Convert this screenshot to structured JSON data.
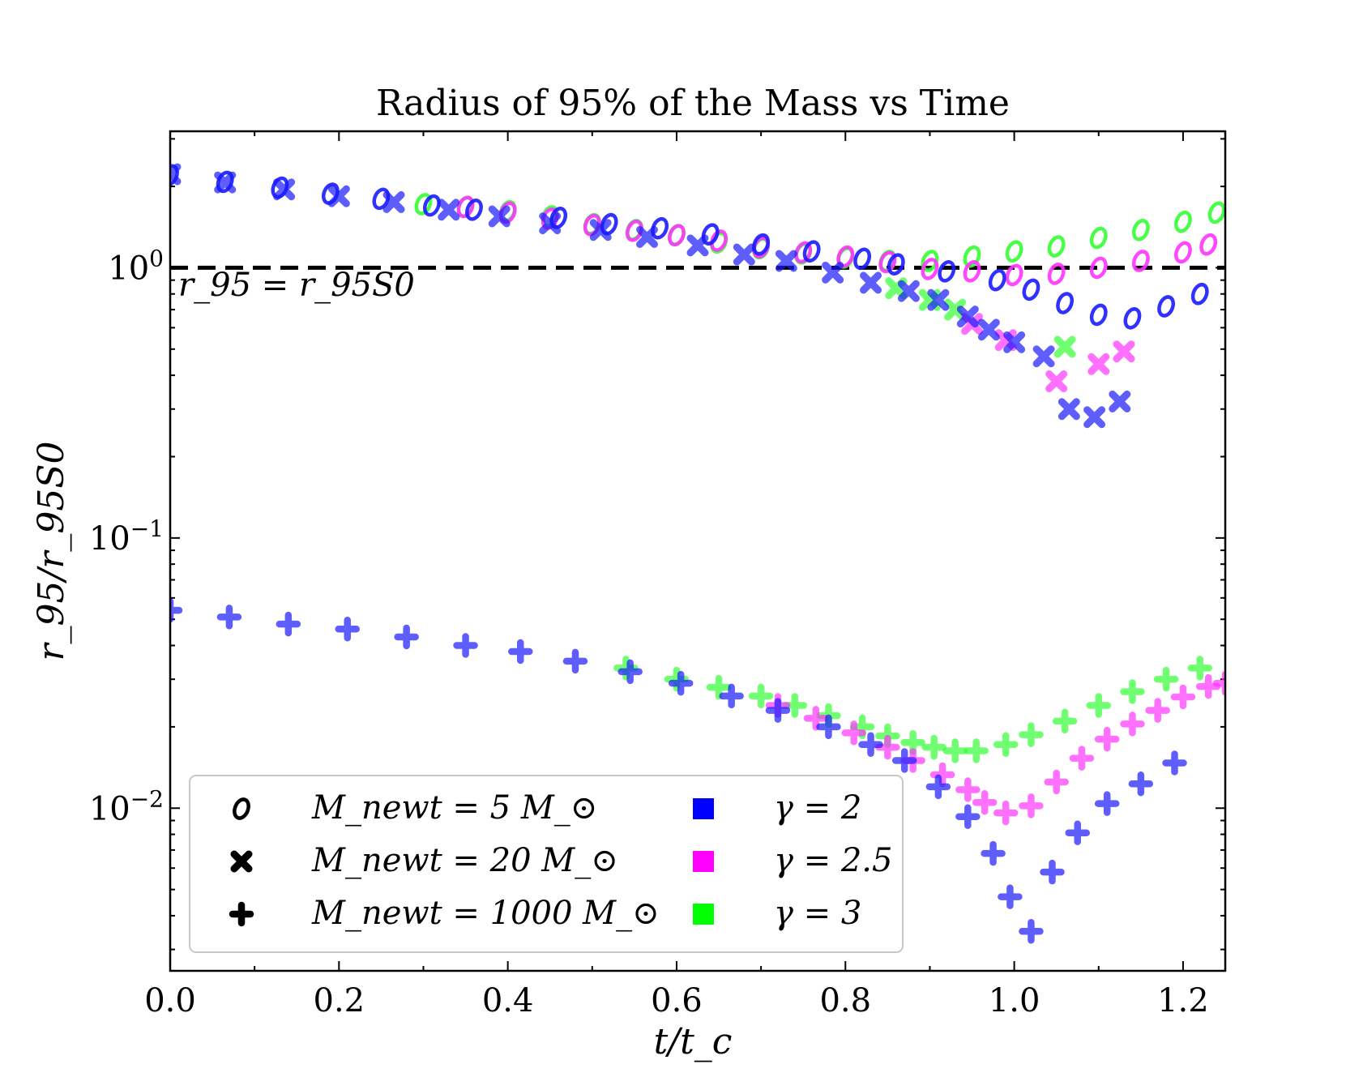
{
  "chart_data": {
    "type": "scatter",
    "title": "Radius of 95% of the Mass vs Time",
    "xlabel": "t/t_c",
    "ylabel": "r_95/r_95S0",
    "xscale": "linear",
    "yscale": "log",
    "xlim": [
      0.0,
      1.25
    ],
    "ylim": [
      0.0025,
      3.2
    ],
    "x_ticks": [
      "0.0",
      "0.2",
      "0.4",
      "0.6",
      "0.8",
      "1.0",
      "1.2"
    ],
    "y_ticks": [
      {
        "value": 1,
        "base": "10",
        "exp": "0"
      },
      {
        "value": 0.1,
        "base": "10",
        "exp": "−1"
      },
      {
        "value": 0.01,
        "base": "10",
        "exp": "−2"
      }
    ],
    "reference_line": {
      "y": 1.0,
      "style": "dashed",
      "label": "r_95 = r_95S0"
    },
    "colors": {
      "gamma2": "#1a1aff",
      "gamma2.5": "#ff33ff",
      "gamma3": "#33ff33"
    },
    "legend": {
      "location": "lower-left",
      "markers": [
        {
          "marker": "o",
          "label": "M_newt = 5 M_⊙"
        },
        {
          "marker": "X",
          "label": "M_newt = 20 M_⊙"
        },
        {
          "marker": "P",
          "label": "M_newt = 1000 M_⊙"
        }
      ],
      "colors": [
        {
          "color": "#0000ff",
          "label": "γ = 2"
        },
        {
          "color": "#ff00ff",
          "label": "γ = 2.5"
        },
        {
          "color": "#00ff00",
          "label": "γ = 3"
        }
      ]
    },
    "series": [
      {
        "name": "M=5, γ=3",
        "marker": "o",
        "color": "#33ff33",
        "x": [
          0.3,
          0.35,
          0.4,
          0.45,
          0.5,
          0.55,
          0.6,
          0.65,
          0.7,
          0.75,
          0.8,
          0.85,
          0.9,
          0.95,
          1.0,
          1.05,
          1.1,
          1.15,
          1.2,
          1.24
        ],
        "y": [
          1.72,
          1.68,
          1.62,
          1.55,
          1.45,
          1.38,
          1.32,
          1.24,
          1.18,
          1.13,
          1.09,
          1.06,
          1.06,
          1.1,
          1.15,
          1.2,
          1.29,
          1.38,
          1.48,
          1.6
        ]
      },
      {
        "name": "M=5, γ=2.5",
        "marker": "o",
        "color": "#ff33ff",
        "x": [
          0.35,
          0.4,
          0.45,
          0.5,
          0.55,
          0.6,
          0.65,
          0.7,
          0.75,
          0.8,
          0.85,
          0.9,
          0.95,
          1.0,
          1.05,
          1.1,
          1.15,
          1.2,
          1.23
        ],
        "y": [
          1.68,
          1.6,
          1.52,
          1.44,
          1.37,
          1.32,
          1.26,
          1.19,
          1.14,
          1.1,
          1.05,
          0.99,
          0.97,
          0.94,
          0.95,
          1.0,
          1.06,
          1.14,
          1.22
        ]
      },
      {
        "name": "M=5, γ=2",
        "marker": "o",
        "color": "#1a1aff",
        "x": [
          0.0,
          0.065,
          0.13,
          0.19,
          0.25,
          0.31,
          0.36,
          0.46,
          0.52,
          0.58,
          0.64,
          0.7,
          0.76,
          0.82,
          0.86,
          0.92,
          0.98,
          1.02,
          1.06,
          1.1,
          1.14,
          1.18,
          1.22
        ],
        "y": [
          2.2,
          2.08,
          1.98,
          1.88,
          1.8,
          1.7,
          1.64,
          1.53,
          1.45,
          1.4,
          1.33,
          1.22,
          1.15,
          1.08,
          1.03,
          0.97,
          0.9,
          0.83,
          0.74,
          0.67,
          0.65,
          0.72,
          0.8
        ]
      },
      {
        "name": "M=20, γ=3",
        "marker": "X",
        "color": "#33ff33",
        "x": [
          0.86,
          0.9,
          0.93,
          1.06
        ],
        "y": [
          0.84,
          0.76,
          0.7,
          0.51
        ]
      },
      {
        "name": "M=20, γ=2.5",
        "marker": "X",
        "color": "#ff33ff",
        "x": [
          0.95,
          0.99,
          1.05,
          1.1,
          1.13
        ],
        "y": [
          0.62,
          0.54,
          0.38,
          0.44,
          0.49
        ]
      },
      {
        "name": "M=20, γ=2",
        "marker": "X",
        "color": "#1a1aff",
        "x": [
          0.0,
          0.065,
          0.135,
          0.2,
          0.265,
          0.33,
          0.39,
          0.45,
          0.51,
          0.565,
          0.625,
          0.68,
          0.73,
          0.785,
          0.83,
          0.875,
          0.91,
          0.945,
          0.97,
          1.0,
          1.035,
          1.065,
          1.095,
          1.125
        ],
        "y": [
          2.22,
          2.07,
          1.95,
          1.84,
          1.75,
          1.64,
          1.55,
          1.46,
          1.38,
          1.3,
          1.21,
          1.12,
          1.06,
          0.96,
          0.88,
          0.82,
          0.76,
          0.66,
          0.59,
          0.53,
          0.47,
          0.3,
          0.28,
          0.32
        ]
      },
      {
        "name": "M=1000, γ=3",
        "marker": "P",
        "color": "#33ff33",
        "x": [
          0.54,
          0.6,
          0.65,
          0.7,
          0.74,
          0.78,
          0.82,
          0.85,
          0.88,
          0.905,
          0.93,
          0.955,
          0.99,
          1.02,
          1.06,
          1.1,
          1.14,
          1.18,
          1.22
        ],
        "y": [
          0.033,
          0.03,
          0.028,
          0.026,
          0.024,
          0.022,
          0.02,
          0.0185,
          0.0175,
          0.0168,
          0.0163,
          0.0163,
          0.0172,
          0.0187,
          0.021,
          0.024,
          0.027,
          0.03,
          0.033
        ]
      },
      {
        "name": "M=1000, γ=2.5",
        "marker": "P",
        "color": "#ff33ff",
        "x": [
          0.72,
          0.765,
          0.81,
          0.85,
          0.88,
          0.915,
          0.945,
          0.965,
          0.99,
          1.02,
          1.05,
          1.08,
          1.11,
          1.14,
          1.17,
          1.2,
          1.23,
          1.25
        ],
        "y": [
          0.024,
          0.0215,
          0.019,
          0.0168,
          0.015,
          0.0133,
          0.0117,
          0.0105,
          0.0096,
          0.0102,
          0.0125,
          0.0153,
          0.018,
          0.0205,
          0.023,
          0.0258,
          0.0282,
          0.029
        ]
      },
      {
        "name": "M=1000, γ=2",
        "marker": "P",
        "color": "#1a1aff",
        "x": [
          0.0,
          0.07,
          0.14,
          0.21,
          0.28,
          0.35,
          0.415,
          0.48,
          0.545,
          0.605,
          0.665,
          0.72,
          0.78,
          0.83,
          0.87,
          0.91,
          0.945,
          0.975,
          0.995,
          1.02,
          1.045,
          1.075,
          1.11,
          1.15,
          1.19
        ],
        "y": [
          0.054,
          0.051,
          0.048,
          0.046,
          0.043,
          0.04,
          0.038,
          0.035,
          0.032,
          0.029,
          0.026,
          0.023,
          0.02,
          0.0172,
          0.015,
          0.012,
          0.0093,
          0.0068,
          0.0047,
          0.0035,
          0.0058,
          0.0081,
          0.0104,
          0.0123,
          0.0147
        ]
      }
    ]
  }
}
